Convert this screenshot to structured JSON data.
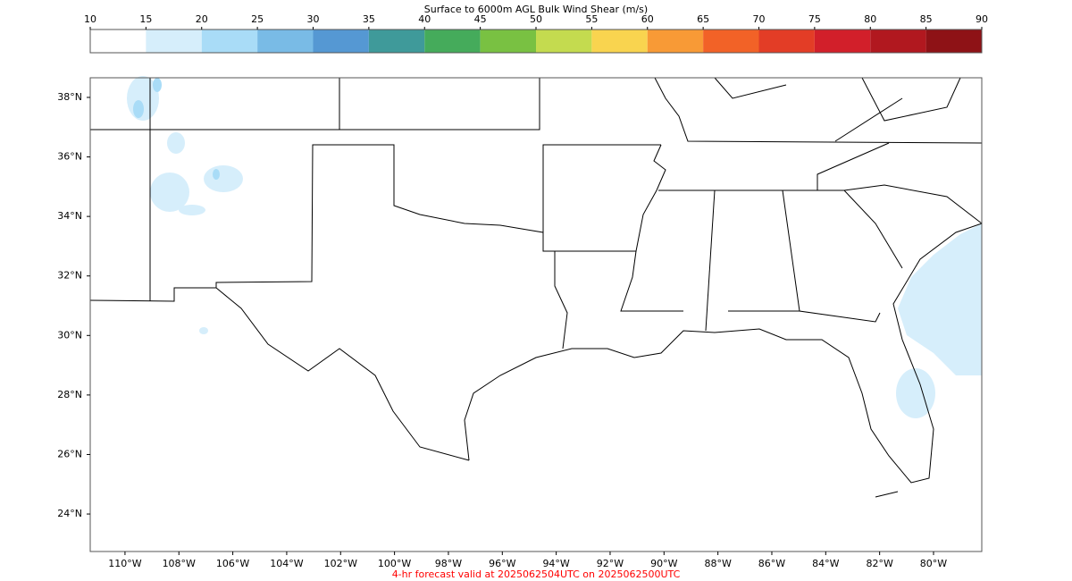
{
  "colorbar": {
    "title": "Surface to 6000m AGL Bulk Wind Shear (m/s)",
    "ticks": [
      10,
      15,
      20,
      25,
      30,
      35,
      40,
      45,
      50,
      55,
      60,
      65,
      70,
      75,
      80,
      85,
      90
    ],
    "colors": [
      "#ffffff",
      "#d6eefb",
      "#a9dcf7",
      "#79bbe6",
      "#5598d3",
      "#3f9a9a",
      "#45ab5b",
      "#79c142",
      "#c4db4f",
      "#f9d44f",
      "#f89a36",
      "#f26227",
      "#e33d26",
      "#d21f2a",
      "#b1181f",
      "#8e1216"
    ]
  },
  "map": {
    "lonlim": [
      -111.29,
      -78.21
    ],
    "latlim": [
      22.74,
      38.66
    ],
    "lat_ticks": [
      {
        "value": 38,
        "label": "38°N"
      },
      {
        "value": 36,
        "label": "36°N"
      },
      {
        "value": 34,
        "label": "34°N"
      },
      {
        "value": 32,
        "label": "32°N"
      },
      {
        "value": 30,
        "label": "30°N"
      },
      {
        "value": 28,
        "label": "28°N"
      },
      {
        "value": 26,
        "label": "26°N"
      },
      {
        "value": 24,
        "label": "24°N"
      }
    ],
    "lon_ticks": [
      {
        "value": -110,
        "label": "110°W"
      },
      {
        "value": -108,
        "label": "108°W"
      },
      {
        "value": -106,
        "label": "106°W"
      },
      {
        "value": -104,
        "label": "104°W"
      },
      {
        "value": -102,
        "label": "102°W"
      },
      {
        "value": -100,
        "label": "100°W"
      },
      {
        "value": -98,
        "label": "98°W"
      },
      {
        "value": -96,
        "label": "96°W"
      },
      {
        "value": -94,
        "label": "94°W"
      },
      {
        "value": -92,
        "label": "92°W"
      },
      {
        "value": -90,
        "label": "90°W"
      },
      {
        "value": -88,
        "label": "88°W"
      },
      {
        "value": -86,
        "label": "86°W"
      },
      {
        "value": -84,
        "label": "84°W"
      },
      {
        "value": -82,
        "label": "82°W"
      },
      {
        "value": -80,
        "label": "80°W"
      }
    ]
  },
  "footer": "4-hr forecast valid at 2025062504UTC on 2025062500UTC"
}
